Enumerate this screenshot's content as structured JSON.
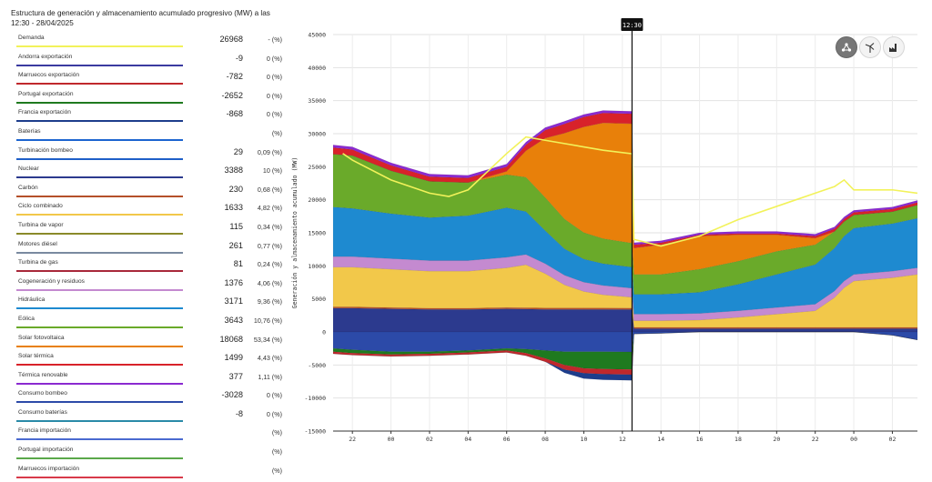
{
  "panel": {
    "title": "Estructura de generación y almacenamiento acumulado progresivo (MW) a las 12:30 - 28/04/2025"
  },
  "legend": [
    {
      "label": "Demanda",
      "value": "26968",
      "pct": "- (%)",
      "color": "#f2f25a"
    },
    {
      "label": "Andorra exportación",
      "value": "-9",
      "pct": "0 (%)",
      "color": "#3a3aa0"
    },
    {
      "label": "Marruecos exportación",
      "value": "-782",
      "pct": "0 (%)",
      "color": "#c0282c"
    },
    {
      "label": "Portugal exportación",
      "value": "-2652",
      "pct": "0 (%)",
      "color": "#1f7a1f"
    },
    {
      "label": "Francia exportación",
      "value": "-868",
      "pct": "0 (%)",
      "color": "#1d3d8c"
    },
    {
      "label": "Baterías",
      "value": "",
      "pct": "(%)",
      "color": "#1c64d0"
    },
    {
      "label": "Turbinación bombeo",
      "value": "29",
      "pct": "0,09 (%)",
      "color": "#1e5fc8"
    },
    {
      "label": "Nuclear",
      "value": "3388",
      "pct": "10 (%)",
      "color": "#2c3a8e"
    },
    {
      "label": "Carbón",
      "value": "230",
      "pct": "0,68 (%)",
      "color": "#b5502a"
    },
    {
      "label": "Ciclo combinado",
      "value": "1633",
      "pct": "4,82 (%)",
      "color": "#f2c84a"
    },
    {
      "label": "Turbina de vapor",
      "value": "115",
      "pct": "0,34 (%)",
      "color": "#8a8a2a"
    },
    {
      "label": "Motores diésel",
      "value": "261",
      "pct": "0,77 (%)",
      "color": "#7a8aa0"
    },
    {
      "label": "Turbina de gas",
      "value": "81",
      "pct": "0,24 (%)",
      "color": "#a8283a"
    },
    {
      "label": "Cogeneración y residuos",
      "value": "1376",
      "pct": "4,06 (%)",
      "color": "#c48ad0"
    },
    {
      "label": "Hidráulica",
      "value": "3171",
      "pct": "9,36 (%)",
      "color": "#1e8ad0"
    },
    {
      "label": "Eólica",
      "value": "3643",
      "pct": "10,76 (%)",
      "color": "#6aaa2a"
    },
    {
      "label": "Solar fotovoltaica",
      "value": "18068",
      "pct": "53,34 (%)",
      "color": "#e8800a"
    },
    {
      "label": "Solar térmica",
      "value": "1499",
      "pct": "4,43 (%)",
      "color": "#d8222a"
    },
    {
      "label": "Térmica renovable",
      "value": "377",
      "pct": "1,11 (%)",
      "color": "#8a2ad0"
    },
    {
      "label": "Consumo bombeo",
      "value": "-3028",
      "pct": "0 (%)",
      "color": "#2c4aa8"
    },
    {
      "label": "Consumo baterías",
      "value": "-8",
      "pct": "0 (%)",
      "color": "#2a8aa8"
    },
    {
      "label": "Francia importación",
      "value": "",
      "pct": "(%)",
      "color": "#4a6ad0"
    },
    {
      "label": "Portugal importación",
      "value": "",
      "pct": "(%)",
      "color": "#5aa84a"
    },
    {
      "label": "Marruecos importación",
      "value": "",
      "pct": "(%)",
      "color": "#d83a4a"
    }
  ],
  "controls": {
    "icons": [
      "network-icon",
      "wind-turbine-icon",
      "factory-icon"
    ]
  },
  "chart_data": {
    "type": "area",
    "ylabel": "Generación y almacenamiento acumulado (MW)",
    "ylim": [
      -15000,
      45000
    ],
    "yticks": [
      -15000,
      -10000,
      -5000,
      0,
      5000,
      10000,
      15000,
      20000,
      25000,
      30000,
      35000,
      40000,
      45000
    ],
    "xlim": [
      21,
      51.3
    ],
    "xticks": [
      22,
      24,
      26,
      28,
      30,
      32,
      34,
      36,
      38,
      40,
      42,
      44,
      46,
      48,
      50
    ],
    "xticklabels": [
      "22",
      "00",
      "02",
      "04",
      "06",
      "08",
      "10",
      "12",
      "14",
      "16",
      "18",
      "20",
      "22",
      "00",
      "02"
    ],
    "marker": {
      "x": 36.5,
      "label": "12:30"
    },
    "grid": true,
    "stack_order": [
      "Nuclear",
      "Carbón",
      "Ciclo combinado",
      "Cogeneración y residuos",
      "Hidráulica",
      "Eólica",
      "Solar fotovoltaica",
      "Solar térmica",
      "Térmica renovable"
    ],
    "x": [
      21,
      22,
      24,
      26,
      28,
      30,
      31,
      32,
      33,
      34,
      35,
      36.5,
      36.6,
      38,
      40,
      42,
      44,
      46,
      47,
      47.5,
      48,
      50,
      51.3
    ],
    "series": [
      {
        "name": "Nuclear",
        "color": "#2c3a8e",
        "values": [
          3600,
          3600,
          3500,
          3400,
          3400,
          3500,
          3450,
          3400,
          3400,
          3400,
          3400,
          3388,
          500,
          500,
          500,
          500,
          500,
          500,
          500,
          500,
          500,
          500,
          500
        ]
      },
      {
        "name": "Carbón",
        "color": "#b5502a",
        "values": [
          200,
          200,
          200,
          200,
          200,
          200,
          220,
          230,
          230,
          230,
          230,
          230,
          200,
          200,
          200,
          200,
          200,
          200,
          200,
          200,
          200,
          200,
          200
        ]
      },
      {
        "name": "Ciclo combinado",
        "color": "#f2c84a",
        "values": [
          6000,
          6000,
          5800,
          5600,
          5600,
          6000,
          6500,
          5200,
          3500,
          2500,
          2000,
          1633,
          1000,
          1000,
          1100,
          1500,
          2000,
          2500,
          4500,
          6000,
          7000,
          7500,
          8000
        ]
      },
      {
        "name": "Cogeneración y residuos",
        "color": "#c48ad0",
        "values": [
          1600,
          1600,
          1600,
          1600,
          1600,
          1600,
          1550,
          1500,
          1450,
          1400,
          1400,
          1376,
          1000,
          1000,
          1000,
          1000,
          1000,
          1000,
          1000,
          1000,
          1000,
          1000,
          1000
        ]
      },
      {
        "name": "Hidráulica",
        "color": "#1e8ad0",
        "values": [
          7500,
          7300,
          6800,
          6500,
          6800,
          7500,
          6500,
          5000,
          4000,
          3500,
          3300,
          3171,
          3000,
          3000,
          3200,
          4000,
          5000,
          6000,
          6500,
          6800,
          7000,
          7200,
          7500
        ]
      },
      {
        "name": "Eólica",
        "color": "#6aaa2a",
        "values": [
          8000,
          8000,
          6500,
          5500,
          5000,
          5000,
          5200,
          5000,
          4500,
          4000,
          3800,
          3643,
          3000,
          3000,
          3500,
          3500,
          3500,
          3000,
          2500,
          2200,
          2000,
          1800,
          2000
        ]
      },
      {
        "name": "Solar fotovoltaica",
        "color": "#e8800a",
        "values": [
          0,
          0,
          0,
          0,
          0,
          500,
          4000,
          9000,
          13000,
          16000,
          17500,
          18068,
          4000,
          4500,
          5000,
          4000,
          2500,
          1000,
          0,
          0,
          0,
          0,
          0
        ]
      },
      {
        "name": "Solar térmica",
        "color": "#d8222a",
        "values": [
          1000,
          900,
          800,
          700,
          700,
          700,
          900,
          1200,
          1400,
          1500,
          1500,
          1499,
          500,
          300,
          200,
          200,
          200,
          300,
          400,
          400,
          400,
          400,
          400
        ]
      },
      {
        "name": "Térmica renovable",
        "color": "#8a2ad0",
        "values": [
          400,
          400,
          400,
          400,
          400,
          400,
          400,
          400,
          390,
          380,
          380,
          377,
          300,
          300,
          300,
          300,
          300,
          300,
          300,
          300,
          300,
          300,
          300
        ]
      }
    ],
    "negative_series": [
      {
        "name": "Consumo bombeo",
        "color": "#2c4aa8",
        "values": [
          -2500,
          -2700,
          -3000,
          -3000,
          -2800,
          -2500,
          -2600,
          -2800,
          -3000,
          -3000,
          -3000,
          -3028,
          -300,
          -200,
          0,
          0,
          0,
          0,
          0,
          0,
          0,
          -500,
          -1200
        ]
      },
      {
        "name": "Portugal exportación",
        "color": "#1f7a1f",
        "values": [
          -500,
          -500,
          -400,
          -300,
          -300,
          -300,
          -600,
          -1200,
          -2000,
          -2500,
          -2600,
          -2652,
          0,
          0,
          0,
          0,
          0,
          0,
          0,
          0,
          0,
          0,
          0
        ]
      },
      {
        "name": "Marruecos exportación",
        "color": "#c0282c",
        "values": [
          -300,
          -300,
          -300,
          -300,
          -300,
          -300,
          -400,
          -500,
          -700,
          -750,
          -780,
          -782,
          0,
          0,
          0,
          0,
          0,
          0,
          0,
          0,
          0,
          0,
          0
        ]
      },
      {
        "name": "Francia exportación",
        "color": "#1d3d8c",
        "values": [
          0,
          0,
          0,
          0,
          0,
          0,
          0,
          0,
          -500,
          -800,
          -860,
          -868,
          0,
          0,
          0,
          0,
          0,
          0,
          0,
          0,
          0,
          0,
          0
        ]
      }
    ],
    "demand": {
      "name": "Demanda",
      "color": "#f2f25a",
      "x": [
        21.5,
        22,
        24,
        26,
        27,
        28,
        30,
        31,
        32,
        34,
        35,
        36.5,
        36.6,
        38,
        40,
        42,
        44,
        46,
        47,
        47.5,
        48,
        50,
        51.3
      ],
      "values": [
        27000,
        26000,
        23000,
        21000,
        20500,
        21500,
        27000,
        29500,
        29000,
        28000,
        27500,
        26968,
        14000,
        13000,
        14500,
        17000,
        19000,
        21000,
        22000,
        23000,
        21500,
        21500,
        21000
      ]
    }
  }
}
